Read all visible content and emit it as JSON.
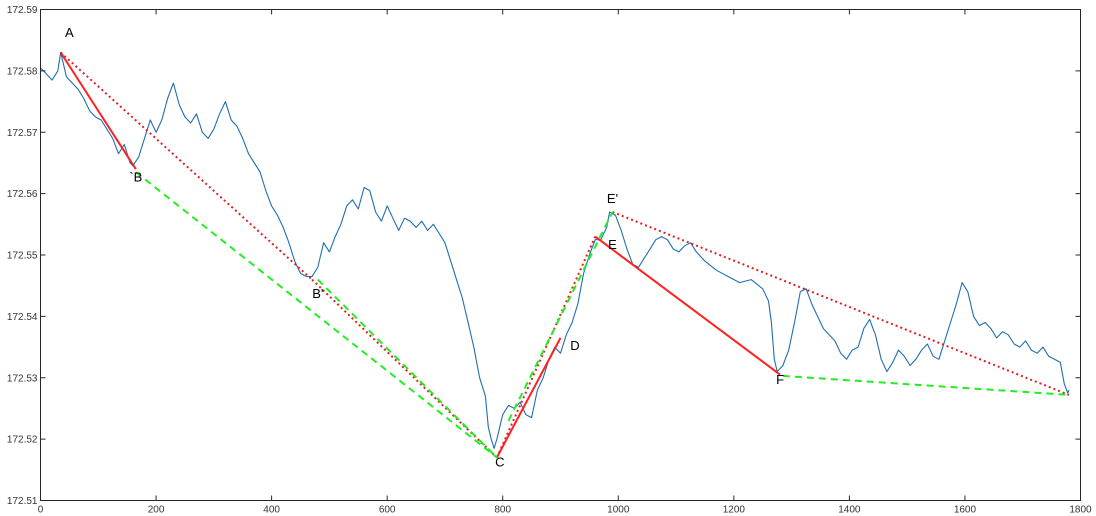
{
  "chart_data": {
    "type": "line",
    "title": "",
    "xlabel": "",
    "ylabel": "",
    "xlim": [
      0,
      1800
    ],
    "ylim": [
      172.51,
      172.59
    ],
    "x_ticks": [
      "0",
      "200",
      "400",
      "600",
      "800",
      "1000",
      "1200",
      "1400",
      "1600",
      "1800"
    ],
    "y_ticks": [
      "172.51",
      "172.52",
      "172.53",
      "172.54",
      "172.55",
      "172.56",
      "172.57",
      "172.58",
      "172.59"
    ],
    "grid": false,
    "colors": {
      "price": "#1f6fb0",
      "solid_leg": "#ff2020",
      "dotted_trend": "#e02020",
      "dashed_trend": "#22ee22"
    },
    "series": [
      {
        "style": "price",
        "points": [
          [
            0,
            172.5805
          ],
          [
            10,
            172.5795
          ],
          [
            20,
            172.5785
          ],
          [
            30,
            172.58
          ],
          [
            35,
            172.583
          ],
          [
            45,
            172.579
          ],
          [
            55,
            172.578
          ],
          [
            65,
            172.577
          ],
          [
            75,
            172.5755
          ],
          [
            85,
            172.5735
          ],
          [
            95,
            172.5725
          ],
          [
            105,
            172.572
          ],
          [
            115,
            172.5705
          ],
          [
            125,
            172.569
          ],
          [
            135,
            172.5665
          ],
          [
            145,
            172.568
          ],
          [
            155,
            172.565
          ],
          [
            160,
            172.5645
          ],
          [
            170,
            172.566
          ],
          [
            180,
            172.569
          ],
          [
            190,
            172.572
          ],
          [
            200,
            172.57
          ],
          [
            210,
            172.572
          ],
          [
            220,
            172.5755
          ],
          [
            230,
            172.578
          ],
          [
            240,
            172.5745
          ],
          [
            250,
            172.5725
          ],
          [
            260,
            172.5715
          ],
          [
            270,
            172.573
          ],
          [
            280,
            172.57
          ],
          [
            290,
            172.569
          ],
          [
            300,
            172.5705
          ],
          [
            310,
            172.573
          ],
          [
            320,
            172.575
          ],
          [
            330,
            172.572
          ],
          [
            340,
            172.571
          ],
          [
            350,
            172.569
          ],
          [
            360,
            172.5665
          ],
          [
            370,
            172.565
          ],
          [
            380,
            172.5635
          ],
          [
            390,
            172.5605
          ],
          [
            400,
            172.558
          ],
          [
            410,
            172.5565
          ],
          [
            420,
            172.5545
          ],
          [
            430,
            172.552
          ],
          [
            440,
            172.549
          ],
          [
            450,
            172.547
          ],
          [
            460,
            172.5465
          ],
          [
            470,
            172.5465
          ],
          [
            480,
            172.548
          ],
          [
            490,
            172.552
          ],
          [
            500,
            172.5505
          ],
          [
            510,
            172.553
          ],
          [
            520,
            172.555
          ],
          [
            530,
            172.558
          ],
          [
            540,
            172.559
          ],
          [
            550,
            172.5575
          ],
          [
            560,
            172.561
          ],
          [
            570,
            172.5605
          ],
          [
            580,
            172.557
          ],
          [
            590,
            172.5555
          ],
          [
            600,
            172.558
          ],
          [
            610,
            172.556
          ],
          [
            620,
            172.554
          ],
          [
            630,
            172.556
          ],
          [
            640,
            172.5555
          ],
          [
            650,
            172.5545
          ],
          [
            660,
            172.5555
          ],
          [
            670,
            172.554
          ],
          [
            680,
            172.555
          ],
          [
            690,
            172.5535
          ],
          [
            700,
            172.552
          ],
          [
            710,
            172.549
          ],
          [
            720,
            172.546
          ],
          [
            730,
            172.543
          ],
          [
            740,
            172.539
          ],
          [
            750,
            172.535
          ],
          [
            760,
            172.53
          ],
          [
            770,
            172.527
          ],
          [
            775,
            172.522
          ],
          [
            780,
            172.52
          ],
          [
            785,
            172.5185
          ],
          [
            790,
            172.52
          ],
          [
            800,
            172.524
          ],
          [
            810,
            172.5255
          ],
          [
            820,
            172.525
          ],
          [
            830,
            172.526
          ],
          [
            840,
            172.524
          ],
          [
            850,
            172.5235
          ],
          [
            860,
            172.528
          ],
          [
            870,
            172.53
          ],
          [
            880,
            172.533
          ],
          [
            890,
            172.535
          ],
          [
            900,
            172.534
          ],
          [
            910,
            172.537
          ],
          [
            920,
            172.539
          ],
          [
            930,
            172.542
          ],
          [
            940,
            172.547
          ],
          [
            950,
            172.55
          ],
          [
            960,
            172.5525
          ],
          [
            970,
            172.5525
          ],
          [
            980,
            172.5545
          ],
          [
            985,
            172.557
          ],
          [
            995,
            172.5565
          ],
          [
            1005,
            172.554
          ],
          [
            1015,
            172.551
          ],
          [
            1025,
            172.5485
          ],
          [
            1035,
            172.548
          ],
          [
            1045,
            172.5495
          ],
          [
            1055,
            172.551
          ],
          [
            1065,
            172.5525
          ],
          [
            1075,
            172.553
          ],
          [
            1085,
            172.5525
          ],
          [
            1095,
            172.551
          ],
          [
            1105,
            172.5505
          ],
          [
            1115,
            172.5515
          ],
          [
            1125,
            172.552
          ],
          [
            1135,
            172.5505
          ],
          [
            1150,
            172.549
          ],
          [
            1170,
            172.5475
          ],
          [
            1190,
            172.5465
          ],
          [
            1210,
            172.5455
          ],
          [
            1230,
            172.546
          ],
          [
            1250,
            172.5445
          ],
          [
            1260,
            172.5425
          ],
          [
            1265,
            172.539
          ],
          [
            1270,
            172.533
          ],
          [
            1275,
            172.531
          ],
          [
            1285,
            172.532
          ],
          [
            1295,
            172.5345
          ],
          [
            1305,
            172.539
          ],
          [
            1315,
            172.544
          ],
          [
            1325,
            172.5445
          ],
          [
            1335,
            172.542
          ],
          [
            1345,
            172.54
          ],
          [
            1355,
            172.538
          ],
          [
            1365,
            172.537
          ],
          [
            1375,
            172.536
          ],
          [
            1385,
            172.534
          ],
          [
            1395,
            172.533
          ],
          [
            1405,
            172.5345
          ],
          [
            1415,
            172.535
          ],
          [
            1425,
            172.538
          ],
          [
            1435,
            172.5395
          ],
          [
            1445,
            172.537
          ],
          [
            1455,
            172.533
          ],
          [
            1465,
            172.531
          ],
          [
            1475,
            172.5325
          ],
          [
            1485,
            172.5345
          ],
          [
            1495,
            172.5335
          ],
          [
            1505,
            172.532
          ],
          [
            1515,
            172.533
          ],
          [
            1525,
            172.5345
          ],
          [
            1535,
            172.5355
          ],
          [
            1545,
            172.5335
          ],
          [
            1555,
            172.533
          ],
          [
            1565,
            172.536
          ],
          [
            1575,
            172.539
          ],
          [
            1585,
            172.542
          ],
          [
            1595,
            172.5455
          ],
          [
            1605,
            172.544
          ],
          [
            1615,
            172.54
          ],
          [
            1625,
            172.5385
          ],
          [
            1635,
            172.539
          ],
          [
            1645,
            172.538
          ],
          [
            1655,
            172.5365
          ],
          [
            1665,
            172.5375
          ],
          [
            1675,
            172.537
          ],
          [
            1685,
            172.5355
          ],
          [
            1695,
            172.535
          ],
          [
            1705,
            172.536
          ],
          [
            1715,
            172.5345
          ],
          [
            1725,
            172.534
          ],
          [
            1735,
            172.535
          ],
          [
            1745,
            172.5335
          ],
          [
            1755,
            172.533
          ],
          [
            1765,
            172.5325
          ],
          [
            1772,
            172.529
          ],
          [
            1778,
            172.5275
          ],
          [
            1780,
            172.528
          ]
        ]
      },
      {
        "style": "solid_leg",
        "points": [
          [
            35,
            172.583
          ],
          [
            165,
            172.564
          ]
        ]
      },
      {
        "style": "solid_leg",
        "points": [
          [
            790,
            172.517
          ],
          [
            900,
            172.5365
          ]
        ]
      },
      {
        "style": "solid_leg",
        "points": [
          [
            960,
            172.553
          ],
          [
            1280,
            172.5305
          ]
        ]
      },
      {
        "style": "dotted_trend",
        "points": [
          [
            35,
            172.583
          ],
          [
            470,
            172.546
          ]
        ]
      },
      {
        "style": "dotted_trend",
        "points": [
          [
            470,
            172.546
          ],
          [
            790,
            172.517
          ]
        ]
      },
      {
        "style": "dotted_trend",
        "points": [
          [
            790,
            172.517
          ],
          [
            960,
            172.553
          ]
        ]
      },
      {
        "style": "dotted_trend",
        "points": [
          [
            990,
            172.557
          ],
          [
            1780,
            172.5272
          ]
        ]
      },
      {
        "style": "dashed_trend",
        "points": [
          [
            165,
            172.5635
          ],
          [
            790,
            172.517
          ]
        ]
      },
      {
        "style": "dashed_trend",
        "points": [
          [
            480,
            172.546
          ],
          [
            790,
            172.517
          ]
        ]
      },
      {
        "style": "dashed_trend",
        "points": [
          [
            810,
            172.523
          ],
          [
            990,
            172.557
          ]
        ]
      },
      {
        "style": "dashed_trend",
        "points": [
          [
            1285,
            172.5303
          ],
          [
            1780,
            172.5272
          ]
        ]
      }
    ],
    "annotations": [
      {
        "text": "A",
        "x": 50,
        "y": 172.5855
      },
      {
        "text": "`B",
        "x": 165,
        "y": 172.562
      },
      {
        "text": "B'",
        "x": 480,
        "y": 172.543
      },
      {
        "text": "C",
        "x": 795,
        "y": 172.5155
      },
      {
        "text": "D",
        "x": 925,
        "y": 172.5345
      },
      {
        "text": "E'",
        "x": 990,
        "y": 172.5585
      },
      {
        "text": "E",
        "x": 990,
        "y": 172.551
      },
      {
        "text": "F",
        "x": 1280,
        "y": 172.529
      }
    ]
  }
}
